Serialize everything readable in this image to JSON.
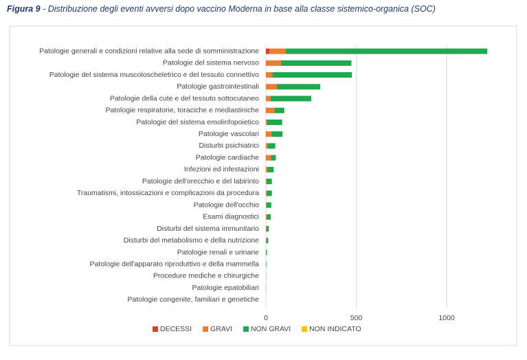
{
  "chart_data": {
    "type": "stacked_hbar",
    "title_label": "Figura 9",
    "title": "- Distribuzione degli eventi avversi dopo vaccino Moderna in base alla classe sistemico-organica (SOC)",
    "categories": [
      "Patologie generali e condizioni relative alla sede di somministrazione",
      "Patologie del sistema nervoso",
      "Patologie del sistema muscoloscheletrico e del tessuto connettivo",
      "Patologie gastrointestinali",
      "Patologie della cute e del tessuto sottocutaneo",
      "Patologie respiratorie, toraciche e mediastiniche",
      "Patologie del sistema emolinfopoietico",
      "Patologie vascolari",
      "Disturbi psichiatrici",
      "Patologie cardiache",
      "Infezioni ed infestazioni",
      "Patologie dell'orecchio e del labirinto",
      "Traumatismi, intossicazioni e complicazioni da procedura",
      "Patologie dell'occhio",
      "Esami diagnostici",
      "Disturbi del sistema immunitario",
      "Disturbi del metabolismo e della nutrizione",
      "Patologie renali e urinarie",
      "Patologie dell'apparato riproduttivo e della mammella",
      "Procedure mediche e chirurgiche",
      "Patologie epatobiliari",
      "Patologie congenite, familiari e genetiche"
    ],
    "series": [
      {
        "name": "DECESSI",
        "color": "#d9432b",
        "values": [
          20,
          3,
          1,
          1,
          1,
          2,
          0,
          2,
          0,
          3,
          0,
          0,
          0,
          0,
          0,
          0,
          0,
          0,
          0,
          0,
          0,
          0
        ]
      },
      {
        "name": "GRAVI",
        "color": "#ed7d31",
        "values": [
          90,
          80,
          35,
          60,
          25,
          45,
          5,
          30,
          10,
          25,
          8,
          3,
          5,
          3,
          5,
          4,
          3,
          1,
          0,
          0,
          0,
          0
        ]
      },
      {
        "name": "NON GRAVI",
        "color": "#1fa84f",
        "values": [
          1115,
          390,
          440,
          240,
          225,
          55,
          85,
          60,
          42,
          27,
          35,
          30,
          28,
          27,
          22,
          12,
          10,
          5,
          3,
          1,
          1,
          0
        ]
      },
      {
        "name": "NON INDICATO",
        "color": "#ffc000",
        "values": [
          0,
          0,
          0,
          0,
          0,
          0,
          0,
          0,
          0,
          0,
          0,
          0,
          0,
          0,
          0,
          0,
          0,
          0,
          0,
          0,
          0,
          0
        ]
      }
    ],
    "xlim": [
      0,
      1300
    ],
    "xticks": [
      0,
      500,
      1000
    ],
    "grid": true,
    "legend": "bottom"
  }
}
